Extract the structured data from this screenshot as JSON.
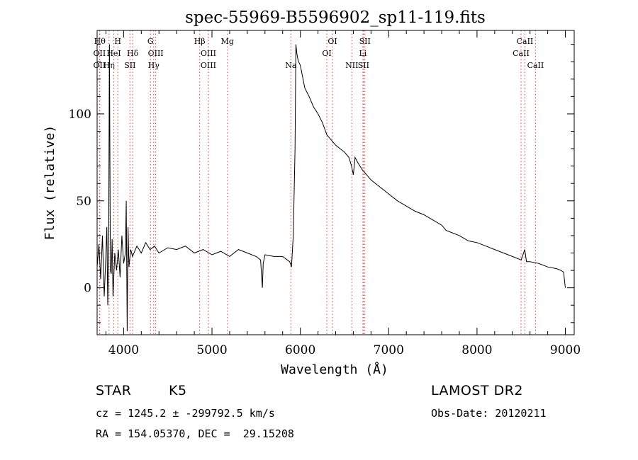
{
  "chart_data": {
    "type": "line",
    "title": "spec-55969-B5596902_sp11-119.fits",
    "xlabel": "Wavelength (Å)",
    "ylabel": "Flux (relative)",
    "xlim": [
      3700,
      9100
    ],
    "ylim": [
      -27,
      148
    ],
    "x_ticks": [
      4000,
      5000,
      6000,
      7000,
      8000,
      9000
    ],
    "y_ticks": [
      0,
      50,
      100
    ],
    "grid": false,
    "series": [
      {
        "x": [
          3700,
          3720,
          3740,
          3760,
          3780,
          3800,
          3810,
          3820,
          3830,
          3840,
          3850,
          3860,
          3870,
          3880,
          3900,
          3920,
          3940,
          3960,
          3980,
          4000,
          4020,
          4030,
          4040,
          4050,
          4060,
          4080,
          4100,
          4150,
          4200,
          4250,
          4300,
          4350,
          4400,
          4500,
          4600,
          4700,
          4800,
          4900,
          5000,
          5100,
          5200,
          5300,
          5400,
          5500,
          5550,
          5570,
          5580,
          5600,
          5700,
          5800,
          5880,
          5900,
          5920,
          5940,
          5950,
          5960,
          5970,
          5980,
          6000,
          6050,
          6080,
          6100,
          6150,
          6200,
          6250,
          6300,
          6350,
          6400,
          6450,
          6500,
          6550,
          6580,
          6600,
          6620,
          6650,
          6700,
          6750,
          6800,
          6900,
          7000,
          7100,
          7200,
          7300,
          7400,
          7500,
          7600,
          7650,
          7700,
          7800,
          7900,
          8000,
          8100,
          8200,
          8300,
          8400,
          8500,
          8540,
          8560,
          8600,
          8700,
          8800,
          8900,
          8950,
          8980,
          9000
        ],
        "y": [
          12,
          25,
          5,
          30,
          -5,
          20,
          35,
          -10,
          15,
          140,
          10,
          8,
          28,
          -5,
          20,
          10,
          22,
          6,
          30,
          14,
          20,
          50,
          -25,
          35,
          12,
          22,
          18,
          24,
          20,
          26,
          22,
          24,
          20,
          23,
          22,
          24,
          20,
          22,
          19,
          21,
          18,
          22,
          20,
          18,
          16,
          0,
          14,
          19,
          18,
          18,
          15,
          12,
          30,
          80,
          140,
          135,
          132,
          130,
          128,
          115,
          112,
          110,
          104,
          100,
          95,
          88,
          85,
          82,
          80,
          78,
          75,
          70,
          65,
          75,
          72,
          68,
          65,
          62,
          58,
          54,
          50,
          47,
          44,
          42,
          39,
          36,
          33,
          32,
          30,
          27,
          26,
          24,
          22,
          20,
          18,
          16,
          22,
          15,
          15,
          14,
          12,
          11,
          10,
          9,
          0
        ]
      }
    ],
    "line_markers": [
      {
        "x": 3730,
        "label": "Hθ",
        "row": 0
      },
      {
        "x": 3727,
        "label": "OII",
        "row": 1
      },
      {
        "x": 3727,
        "label": "OII",
        "row": 2
      },
      {
        "x": 3835,
        "label": "Hη",
        "row": 2
      },
      {
        "x": 3889,
        "label": "HeI",
        "row": 1
      },
      {
        "x": 3934,
        "label": "H",
        "row": 0
      },
      {
        "x": 4102,
        "label": "Hδ",
        "row": 1
      },
      {
        "x": 4072,
        "label": "SII",
        "row": 2
      },
      {
        "x": 4304,
        "label": "G",
        "row": 0
      },
      {
        "x": 4363,
        "label": "OIII",
        "row": 1
      },
      {
        "x": 4340,
        "label": "Hγ",
        "row": 2
      },
      {
        "x": 4861,
        "label": "Hβ",
        "row": 0
      },
      {
        "x": 4959,
        "label": "OIII",
        "row": 1
      },
      {
        "x": 4959,
        "label": "OIII",
        "row": 2
      },
      {
        "x": 5175,
        "label": "Mg",
        "row": 0
      },
      {
        "x": 5893,
        "label": "Na",
        "row": 2
      },
      {
        "x": 6364,
        "label": "OI",
        "row": 0
      },
      {
        "x": 6300,
        "label": "OI",
        "row": 1
      },
      {
        "x": 6731,
        "label": "SII",
        "row": 0
      },
      {
        "x": 6708,
        "label": "Li",
        "row": 1
      },
      {
        "x": 6583,
        "label": "NII",
        "row": 2
      },
      {
        "x": 6716,
        "label": "SII",
        "row": 2
      },
      {
        "x": 8542,
        "label": "CaII",
        "row": 0
      },
      {
        "x": 8498,
        "label": "CaII",
        "row": 1
      },
      {
        "x": 8662,
        "label": "CaII",
        "row": 2
      }
    ],
    "marker_color": "#e04040"
  },
  "info": {
    "object_type": "STAR",
    "subclass": "K5",
    "survey": "LAMOST DR2",
    "cz_line": "cz = 1245.2 ± -299792.5 km/s",
    "obs_date": "Obs-Date: 20120211",
    "radec": "RA = 154.05370, DEC =  29.15208"
  }
}
